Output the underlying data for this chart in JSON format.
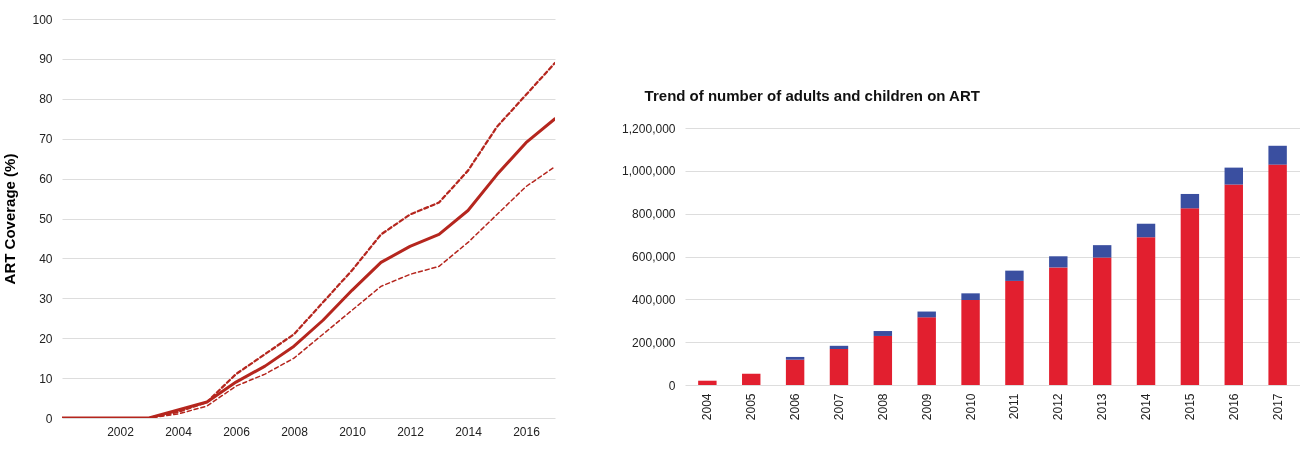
{
  "chart_data": [
    {
      "type": "line",
      "ylabel": "ART Coverage (%)",
      "x": [
        2000,
        2001,
        2002,
        2003,
        2004,
        2005,
        2006,
        2007,
        2008,
        2009,
        2010,
        2011,
        2012,
        2013,
        2014,
        2015,
        2016,
        2017
      ],
      "series": [
        {
          "color": "#b5261e",
          "line_style": "solid",
          "values": [
            0,
            0,
            0,
            0,
            2,
            4,
            9,
            13,
            18,
            24.5,
            32,
            39,
            43,
            46,
            52,
            61,
            69,
            75
          ]
        },
        {
          "color": "#b5261e",
          "line_style": "dashed",
          "values": [
            0,
            0,
            0,
            0,
            1.5,
            4,
            11,
            16,
            21,
            29,
            37,
            46,
            51,
            54,
            62,
            73,
            81,
            89
          ]
        },
        {
          "color": "#b5261e",
          "line_style": "dashed",
          "values": [
            0,
            0,
            0,
            0,
            1,
            3,
            8,
            11,
            15,
            21,
            27,
            33,
            36,
            38,
            44,
            51,
            58,
            63
          ]
        }
      ],
      "xlim": [
        2000,
        2017
      ],
      "xticks": [
        2002,
        2004,
        2006,
        2008,
        2010,
        2012,
        2014,
        2016
      ],
      "ylim": [
        0,
        100
      ],
      "yticks": [
        0,
        10,
        20,
        30,
        40,
        50,
        60,
        70,
        80,
        90,
        100
      ],
      "grid": "y"
    },
    {
      "type": "bar",
      "title": "Trend of number of adults and children on ART",
      "stacked": true,
      "categories": [
        "2004",
        "2005",
        "2006",
        "2007",
        "2008",
        "2009",
        "2010",
        "2011",
        "2012",
        "2013",
        "2014",
        "2015",
        "2016",
        "2017"
      ],
      "series": [
        {
          "color": "#e21f2f",
          "values": [
            20000,
            52000,
            118000,
            168000,
            229000,
            316000,
            397000,
            486000,
            549000,
            595000,
            690000,
            825000,
            936000,
            1029000
          ]
        },
        {
          "color": "#3a4fa0",
          "values": [
            null,
            null,
            13000,
            15000,
            23000,
            27000,
            31000,
            48000,
            52000,
            58000,
            63000,
            67000,
            79000,
            88000
          ]
        }
      ],
      "ylim": [
        0,
        1200000
      ],
      "yticks": [
        0,
        {
          "value": 200000,
          "label": "200,000"
        },
        {
          "value": 400000,
          "label": "400,000"
        },
        {
          "value": 600000,
          "label": "600,000"
        },
        {
          "value": 800000,
          "label": "800,000"
        },
        {
          "value": 1000000,
          "label": "1,000,000"
        },
        {
          "value": 1200000,
          "label": "1,200,000"
        }
      ],
      "grid": "y"
    }
  ]
}
